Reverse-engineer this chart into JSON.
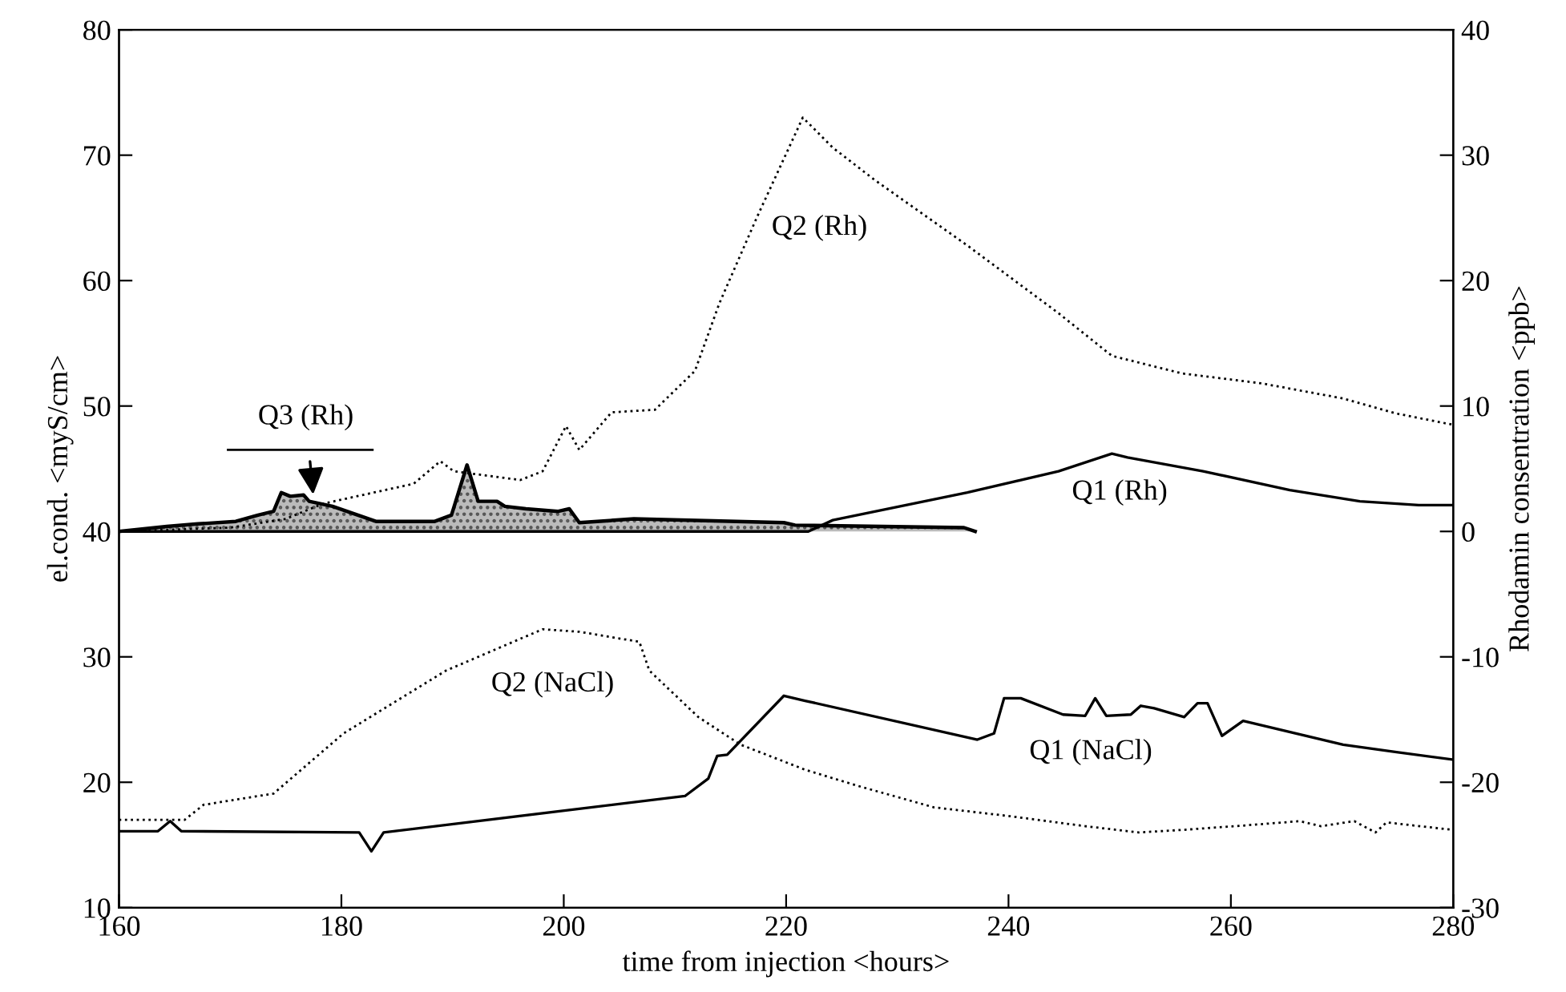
{
  "chart_data": {
    "type": "line",
    "xlabel": "time from injection <hours>",
    "ylabel": "el.cond. <myS/cm>",
    "y2label": "Rhodamin consentration <ppb>",
    "xlim": [
      160,
      280
    ],
    "xticks": [
      160,
      180,
      200,
      220,
      240,
      260,
      280
    ],
    "ylim": [
      10,
      80
    ],
    "yticks": [
      10,
      20,
      30,
      40,
      50,
      60,
      70,
      80
    ],
    "y2lim": [
      -30,
      40
    ],
    "y2ticks": [
      -30,
      -20,
      -10,
      0,
      10,
      20,
      30,
      40
    ],
    "grid": false,
    "legend": false,
    "series": [
      {
        "name": "Q1 (NaCl)",
        "color": "#000000",
        "line_style": "solid",
        "x": [
          160,
          163.5,
          164.6,
          165.6,
          181.6,
          182.7,
          183.8,
          210.9,
          213,
          213.8,
          214.7,
          219.8,
          221.7,
          237.2,
          238.7,
          239.6,
          241.1,
          244.9,
          246.9,
          247.8,
          248.8,
          251,
          251.9,
          253.1,
          255.8,
          257,
          257.9,
          259.2,
          261.1,
          270.1,
          274.9,
          280
        ],
        "values": [
          16.1,
          16.1,
          16.9,
          16.1,
          16.0,
          14.5,
          16.0,
          18.9,
          20.3,
          22.1,
          22.2,
          26.9,
          26.5,
          23.4,
          23.9,
          26.7,
          26.7,
          25.4,
          25.3,
          26.7,
          25.3,
          25.4,
          26.1,
          25.9,
          25.2,
          26.3,
          26.3,
          23.7,
          24.9,
          23.0,
          22.4,
          21.8
        ]
      },
      {
        "name": "Q2 (NaCl)",
        "color": "#000000",
        "line_style": "dotted",
        "x": [
          160,
          165.9,
          167.6,
          173.9,
          180.2,
          189.4,
          198.1,
          201.4,
          206.8,
          207.7,
          212.1,
          215.9,
          221.7,
          226.5,
          233.3,
          240.1,
          246.9,
          251.7,
          255.6,
          260.4,
          266.2,
          268.1,
          271.1,
          273,
          274,
          280
        ],
        "values": [
          17.0,
          17.0,
          18.2,
          19.1,
          23.9,
          28.9,
          32.2,
          32.0,
          31.2,
          28.9,
          25.2,
          23.0,
          21.0,
          19.7,
          18.0,
          17.3,
          16.5,
          16.0,
          16.2,
          16.5,
          16.9,
          16.5,
          16.9,
          16.0,
          16.8,
          16.2
        ]
      },
      {
        "name": "Q2 (Rh)",
        "color": "#000000",
        "line_style": "dotted",
        "axis": "y2",
        "x": [
          160,
          170,
          175,
          178.3,
          186.5,
          188.9,
          190.1,
          196.1,
          198.1,
          200.2,
          201.4,
          204.3,
          208.2,
          211.8,
          214,
          217.4,
          221.5,
          224.2,
          228,
          236.3,
          244.5,
          249.3,
          255.6,
          262.8,
          270.1,
          274.9,
          280
        ],
        "values": [
          0,
          0.3,
          1,
          2.2,
          3.8,
          5.6,
          4.8,
          4.1,
          4.8,
          8.4,
          6.5,
          9.5,
          9.7,
          12.8,
          18.2,
          25.1,
          33.0,
          30.6,
          28.0,
          22.8,
          17.4,
          14.0,
          12.6,
          11.8,
          10.6,
          9.4,
          8.5
        ]
      },
      {
        "name": "Q1 (Rh)",
        "color": "#000000",
        "line_style": "solid",
        "axis": "y2",
        "x": [
          160,
          222,
          224.2,
          236.3,
          244.5,
          249.3,
          250.7,
          257.5,
          265.3,
          271.6,
          276.9,
          280
        ],
        "values": [
          0,
          0,
          0.9,
          3.1,
          4.8,
          6.2,
          5.9,
          4.8,
          3.3,
          2.4,
          2.1,
          2.1
        ]
      },
      {
        "name": "Q3 (Rh)",
        "type": "area",
        "color": "#000000",
        "line_style": "solid",
        "axis": "y2",
        "x": [
          160,
          164.3,
          167.1,
          170.5,
          172.5,
          173.9,
          174.6,
          175.4,
          176.6,
          177.1,
          179.2,
          183.1,
          188.4,
          189.9,
          191.3,
          192.3,
          194,
          194.7,
          196.6,
          199.5,
          200.5,
          201.4,
          206.3,
          219.8,
          220.8,
          236,
          237
        ],
        "values": [
          0,
          0.4,
          0.6,
          0.8,
          1.3,
          1.6,
          3.1,
          2.8,
          2.9,
          2.4,
          2.0,
          0.8,
          0.8,
          1.3,
          5.3,
          2.4,
          2.4,
          2.0,
          1.8,
          1.6,
          1.8,
          0.7,
          1.0,
          0.7,
          0.5,
          0.3,
          0
        ]
      }
    ]
  }
}
